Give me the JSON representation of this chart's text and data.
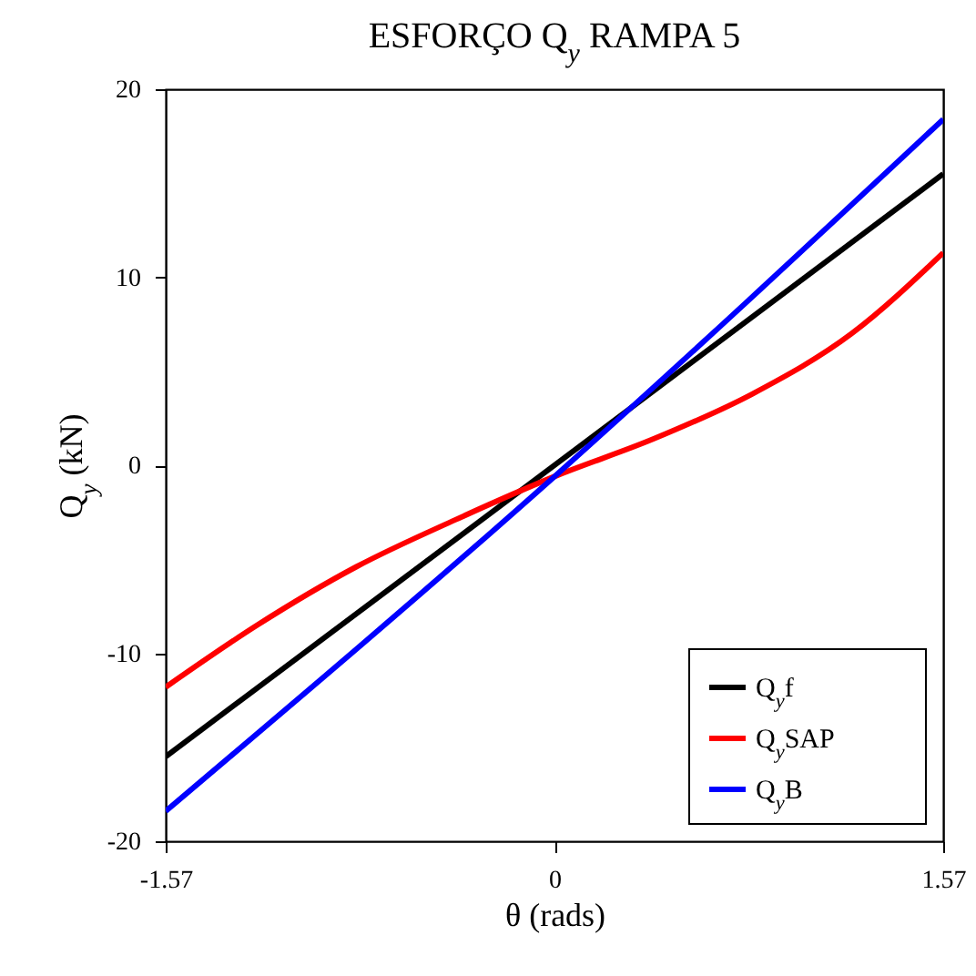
{
  "chart_data": {
    "type": "line",
    "title": "ESFORÇO Q$_{y}$ RAMPA 5",
    "xlabel": "θ (rads)",
    "ylabel": "Q$_{y}$ (kN)",
    "xlim": [
      -1.57,
      1.57
    ],
    "xticks": [
      -1.57,
      0,
      1.57
    ],
    "ylim": [
      -20,
      20
    ],
    "yticks": [
      -20,
      -10,
      0,
      10,
      20
    ],
    "grid": false,
    "legend": "bottom right",
    "marker": "none",
    "line_style": "solid",
    "series": [
      {
        "name": "Q$_{y}$f",
        "color": "#000000",
        "x": [
          -1.57,
          1.57
        ],
        "values": [
          -15.5,
          15.5
        ]
      },
      {
        "name": "Q$_{y}$SAP",
        "color": "#ff0000",
        "x": [
          -1.57,
          -1.2,
          -0.8,
          -0.4,
          0,
          0.4,
          0.8,
          1.2,
          1.57
        ],
        "values": [
          -11.8,
          -8.5,
          -5.4,
          -2.9,
          -0.6,
          1.4,
          3.8,
          7.0,
          11.3
        ]
      },
      {
        "name": "Q$_{y}$B",
        "color": "#0000ff",
        "x": [
          -1.57,
          0,
          1.57
        ],
        "values": [
          -18.4,
          -0.6,
          18.4
        ]
      }
    ]
  }
}
